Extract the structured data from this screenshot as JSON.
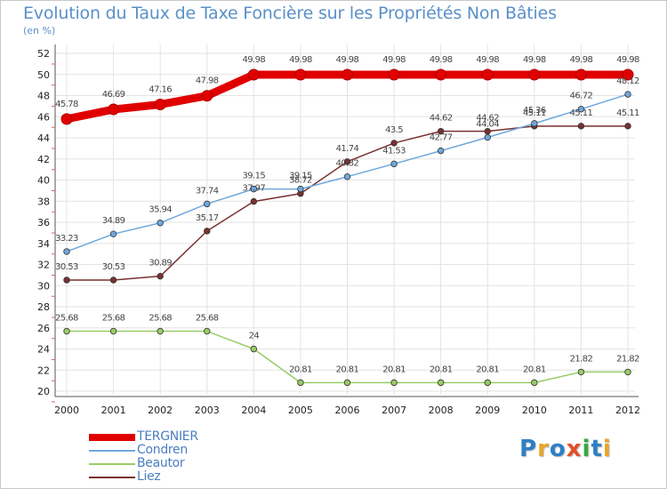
{
  "title": "Evolution du Taux de Taxe Foncière sur les Propriétés Non Bâties",
  "subtitle": "(en %)",
  "logo": {
    "text": "Proxiti",
    "letters": [
      {
        "ch": "P",
        "color": "#2f7fc4"
      },
      {
        "ch": "r",
        "color": "#e8a52a"
      },
      {
        "ch": "o",
        "color": "#2f7fc4"
      },
      {
        "ch": "x",
        "color": "#e2502a"
      },
      {
        "ch": "i",
        "color": "#3aa844"
      },
      {
        "ch": "t",
        "color": "#2f7fc4"
      },
      {
        "ch": "i",
        "color": "#e8a52a"
      }
    ]
  },
  "chart_data": {
    "type": "line",
    "title": "Evolution du Taux de Taxe Foncière sur les Propriétés Non Bâties",
    "ylabel": "(en %)",
    "xlabel": "",
    "x": [
      "2000",
      "2001",
      "2002",
      "2003",
      "2004",
      "2005",
      "2006",
      "2007",
      "2008",
      "2009",
      "2010",
      "2011",
      "2012"
    ],
    "ylim": [
      20,
      52
    ],
    "yticks": [
      20,
      22,
      24,
      26,
      28,
      30,
      32,
      34,
      36,
      38,
      40,
      42,
      44,
      46,
      48,
      50,
      52
    ],
    "grid": true,
    "legend_position": "bottom-left",
    "series": [
      {
        "name": "TERGNIER",
        "color": "#e00000",
        "values": [
          45.78,
          46.69,
          47.16,
          47.98,
          49.98,
          49.98,
          49.98,
          49.98,
          49.98,
          49.98,
          49.98,
          49.98,
          49.98
        ],
        "labels": [
          "45.78",
          "46.69",
          "47.16",
          "47.98",
          "49.98",
          "49.98",
          "49.98",
          "49.98",
          "49.98",
          "49.98",
          "49.98",
          "49.98",
          "49.98"
        ]
      },
      {
        "name": "Condren",
        "color": "#6fa8dc",
        "values": [
          33.23,
          34.89,
          35.94,
          37.74,
          39.15,
          39.15,
          40.32,
          41.53,
          42.77,
          44.04,
          45.36,
          46.72,
          48.12
        ],
        "labels": [
          "33.23",
          "34.89",
          "35.94",
          "37.74",
          "39.15",
          "39.15",
          "40.32",
          "41.53",
          "42.77",
          "44.04",
          "45.36",
          "46.72",
          "48.12"
        ]
      },
      {
        "name": "Beautor",
        "color": "#99cc66",
        "values": [
          25.68,
          25.68,
          25.68,
          25.68,
          24,
          20.81,
          20.81,
          20.81,
          20.81,
          20.81,
          20.81,
          21.82,
          21.82
        ],
        "labels": [
          "25.68",
          "25.68",
          "25.68",
          "25.68",
          "24",
          "20.81",
          "20.81",
          "20.81",
          "20.81",
          "20.81",
          "20.81",
          "21.82",
          "21.82"
        ]
      },
      {
        "name": "Liez",
        "color": "#7a3030",
        "values": [
          30.53,
          30.53,
          30.89,
          35.17,
          37.97,
          38.72,
          41.74,
          43.5,
          44.62,
          44.62,
          45.11,
          45.11,
          45.11
        ],
        "labels": [
          "30.53",
          "30.53",
          "30.89",
          "35.17",
          "37.97",
          "38.72",
          "41.74",
          "43.5",
          "44.62",
          "44.62",
          "45.11",
          "45.11",
          "45.11"
        ]
      }
    ]
  }
}
